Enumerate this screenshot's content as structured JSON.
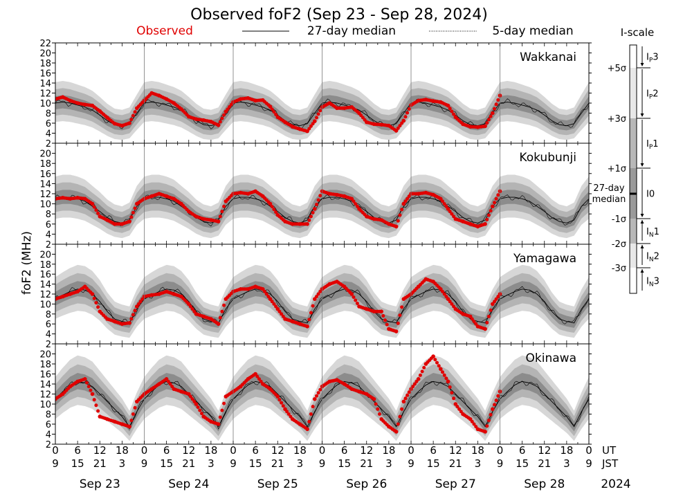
{
  "title": "Observed foF2 (Sep 23 - Sep 28, 2024)",
  "legend": {
    "observed": "Observed",
    "median27": "27-day median",
    "median5": "5-day median",
    "colors": {
      "observed": "#e00000",
      "median": "#000000",
      "band1": "#8c8c8c",
      "band2": "#b4b4b4",
      "band3": "#d7d7d7"
    }
  },
  "y_axis_label": "foF2 (MHz)",
  "x_axis": {
    "ut_label": "UT",
    "jst_label": "JST",
    "ut_ticks": [
      "0",
      "6",
      "12",
      "18",
      "0",
      "6",
      "12",
      "18",
      "0",
      "6",
      "12",
      "18",
      "0",
      "6",
      "12",
      "18",
      "0",
      "6",
      "12",
      "18",
      "0",
      "6",
      "12",
      "18",
      "0"
    ],
    "jst_ticks": [
      "9",
      "15",
      "21",
      "3",
      "9",
      "15",
      "21",
      "3",
      "9",
      "15",
      "21",
      "3",
      "9",
      "15",
      "21",
      "3",
      "9",
      "15",
      "21",
      "3",
      "9",
      "15",
      "21",
      "3",
      "9"
    ],
    "dates": [
      "Sep 23",
      "Sep 24",
      "Sep 25",
      "Sep 26",
      "Sep 27",
      "Sep 28"
    ],
    "year": "2024"
  },
  "iscale": {
    "title": "I-scale",
    "sigma_labels": [
      "+5σ",
      "+3σ",
      "+1σ",
      "27-day median",
      "-1σ",
      "-2σ",
      "-3σ"
    ],
    "class_labels": [
      {
        "base": "I",
        "sub": "P",
        "num": "3"
      },
      {
        "base": "I",
        "sub": "P",
        "num": "2"
      },
      {
        "base": "I",
        "sub": "P",
        "num": "1"
      },
      {
        "base": "I0",
        "sub": "",
        "num": ""
      },
      {
        "base": "I",
        "sub": "N",
        "num": "1"
      },
      {
        "base": "I",
        "sub": "N",
        "num": "2"
      },
      {
        "base": "I",
        "sub": "N",
        "num": "3"
      }
    ]
  },
  "chart_data": {
    "type": "scatter",
    "title": "Observed foF2 (Sep 23 - Sep 28, 2024)",
    "ylabel": "foF2 (MHz)",
    "x_unit": "hours UT since Sep 23 00:00",
    "xlim": [
      0,
      144
    ],
    "panels": [
      {
        "name": "Wakkanai",
        "ylim": [
          2,
          22
        ],
        "yticks": [
          "2",
          "4",
          "6",
          "8",
          "10",
          "12",
          "14",
          "16",
          "18",
          "20",
          "22"
        ],
        "median27": {
          "x": [
            0,
            2,
            4,
            6,
            8,
            10,
            12,
            14,
            16,
            18,
            20,
            22,
            24
          ],
          "y": [
            10.0,
            10.2,
            10.0,
            9.6,
            9.2,
            8.6,
            7.6,
            6.5,
            5.7,
            5.5,
            5.9,
            8.0,
            10.0
          ]
        },
        "observed": {
          "x": [
            0,
            2,
            4,
            6,
            8,
            10,
            12,
            14,
            16,
            18,
            20,
            22,
            24,
            26,
            28,
            30,
            32,
            34,
            36,
            38,
            40,
            42,
            44,
            46,
            48,
            50,
            52,
            54,
            56,
            58,
            60,
            62,
            64,
            66,
            68,
            70,
            72,
            74,
            76,
            78,
            80,
            82,
            84,
            86,
            88,
            90,
            92,
            94,
            96,
            98,
            100,
            102,
            104,
            106,
            108,
            110,
            112,
            114,
            116,
            118,
            120
          ],
          "y": [
            10.8,
            11.2,
            10.5,
            10.0,
            9.7,
            9.5,
            8.4,
            7.1,
            5.9,
            5.5,
            6.0,
            9.0,
            10.5,
            12.0,
            11.5,
            10.8,
            10.0,
            8.8,
            7.3,
            6.8,
            6.6,
            6.3,
            5.6,
            8.3,
            10.2,
            10.8,
            11.0,
            10.5,
            10.6,
            9.3,
            7.2,
            6.2,
            5.3,
            4.8,
            4.4,
            6.4,
            9.2,
            10.0,
            9.0,
            9.0,
            9.2,
            8.0,
            6.2,
            5.8,
            5.7,
            5.5,
            4.5,
            6.5,
            9.6,
            10.5,
            10.7,
            10.4,
            10.2,
            9.5,
            7.2,
            5.8,
            5.3,
            5.2,
            5.4,
            8.0,
            11.5
          ]
        }
      },
      {
        "name": "Kokubunji",
        "ylim": [
          2,
          22
        ],
        "yticks": [
          "2",
          "4",
          "6",
          "8",
          "10",
          "12",
          "14",
          "16",
          "18",
          "20"
        ],
        "median27": {
          "x": [
            0,
            2,
            4,
            6,
            8,
            10,
            12,
            14,
            16,
            18,
            20,
            22,
            24
          ],
          "y": [
            11.0,
            11.3,
            11.3,
            11.0,
            10.5,
            9.5,
            8.5,
            7.3,
            6.5,
            6.2,
            6.8,
            9.5,
            11.0
          ]
        },
        "observed": {
          "x": [
            0,
            2,
            4,
            6,
            8,
            10,
            12,
            14,
            16,
            18,
            20,
            22,
            24,
            26,
            28,
            30,
            32,
            34,
            36,
            38,
            40,
            42,
            44,
            46,
            48,
            50,
            52,
            54,
            56,
            58,
            60,
            62,
            64,
            66,
            68,
            70,
            72,
            74,
            76,
            78,
            80,
            82,
            84,
            86,
            88,
            90,
            92,
            94,
            96,
            98,
            100,
            102,
            104,
            106,
            108,
            110,
            112,
            114,
            116,
            118,
            120
          ],
          "y": [
            11.0,
            11.2,
            11.0,
            11.2,
            11.0,
            10.0,
            7.5,
            6.8,
            6.0,
            6.0,
            6.5,
            10.0,
            11.0,
            11.5,
            12.0,
            11.5,
            11.0,
            10.0,
            8.5,
            7.5,
            7.0,
            6.8,
            6.5,
            10.5,
            12.0,
            12.2,
            12.0,
            12.5,
            11.5,
            10.0,
            7.8,
            6.5,
            6.0,
            6.0,
            6.0,
            9.0,
            12.5,
            12.0,
            11.8,
            11.5,
            11.0,
            9.0,
            7.5,
            7.0,
            6.8,
            6.0,
            5.5,
            10.0,
            12.0,
            12.0,
            12.2,
            11.8,
            11.0,
            9.0,
            7.0,
            6.5,
            6.0,
            5.5,
            6.0,
            9.5,
            12.5
          ]
        }
      },
      {
        "name": "Yamagawa",
        "ylim": [
          2,
          22
        ],
        "yticks": [
          "2",
          "4",
          "6",
          "8",
          "10",
          "12",
          "14",
          "16",
          "18",
          "20"
        ],
        "median27": {
          "x": [
            0,
            2,
            4,
            6,
            8,
            10,
            12,
            14,
            16,
            18,
            20,
            22,
            24
          ],
          "y": [
            11.0,
            11.8,
            12.5,
            13.0,
            12.8,
            12.0,
            10.5,
            8.5,
            7.0,
            6.5,
            6.2,
            9.0,
            11.0
          ]
        },
        "observed": {
          "x": [
            0,
            2,
            4,
            6,
            8,
            10,
            12,
            14,
            16,
            18,
            20,
            22,
            24,
            26,
            28,
            30,
            32,
            34,
            36,
            38,
            40,
            42,
            44,
            46,
            48,
            50,
            52,
            54,
            56,
            58,
            60,
            62,
            64,
            66,
            68,
            70,
            72,
            74,
            76,
            78,
            80,
            82,
            84,
            86,
            88,
            90,
            92,
            94,
            96,
            98,
            100,
            102,
            104,
            106,
            108,
            110,
            112,
            114,
            116,
            118,
            120
          ],
          "y": [
            11.0,
            11.5,
            12.0,
            12.5,
            13.5,
            12.0,
            8.5,
            7.0,
            6.5,
            6.0,
            6.2,
            9.5,
            11.5,
            11.8,
            12.0,
            12.5,
            12.0,
            11.5,
            10.0,
            8.0,
            7.5,
            7.0,
            6.0,
            11.0,
            12.5,
            13.0,
            13.0,
            13.5,
            13.0,
            11.0,
            9.0,
            7.0,
            6.5,
            6.0,
            5.5,
            11.0,
            13.0,
            14.0,
            14.5,
            13.5,
            12.0,
            9.5,
            9.0,
            8.5,
            8.5,
            5.0,
            4.5,
            11.0,
            12.0,
            13.5,
            15.0,
            14.5,
            13.0,
            11.0,
            9.0,
            8.0,
            7.5,
            5.5,
            5.0,
            10.0,
            12.0
          ]
        }
      },
      {
        "name": "Okinawa",
        "ylim": [
          2,
          22
        ],
        "yticks": [
          "2",
          "4",
          "6",
          "8",
          "10",
          "12",
          "14",
          "16",
          "18",
          "20"
        ],
        "median27": {
          "x": [
            0,
            2,
            4,
            6,
            8,
            10,
            12,
            14,
            16,
            18,
            20,
            22,
            24
          ],
          "y": [
            11.0,
            12.5,
            13.8,
            14.5,
            14.2,
            13.5,
            12.0,
            10.5,
            9.0,
            7.5,
            5.5,
            8.5,
            11.0
          ]
        },
        "observed": {
          "x": [
            0,
            2,
            4,
            6,
            8,
            10,
            12,
            14,
            16,
            18,
            20,
            22,
            24,
            26,
            28,
            30,
            32,
            34,
            36,
            38,
            40,
            42,
            44,
            46,
            48,
            50,
            52,
            54,
            56,
            58,
            60,
            62,
            64,
            66,
            68,
            70,
            72,
            74,
            76,
            78,
            80,
            82,
            84,
            86,
            88,
            90,
            92,
            94,
            96,
            98,
            100,
            102,
            104,
            106,
            108,
            110,
            112,
            114,
            116,
            118,
            120
          ],
          "y": [
            11.0,
            12.0,
            13.5,
            14.5,
            15.0,
            12.0,
            7.5,
            7.0,
            6.5,
            6.0,
            5.5,
            10.5,
            12.0,
            13.0,
            14.0,
            15.0,
            13.0,
            12.5,
            12.0,
            10.0,
            7.5,
            6.5,
            6.0,
            11.5,
            12.5,
            13.5,
            15.0,
            16.0,
            14.0,
            13.0,
            11.5,
            9.0,
            7.0,
            6.0,
            5.0,
            11.0,
            13.5,
            14.5,
            14.8,
            14.0,
            13.0,
            12.5,
            12.0,
            11.0,
            7.0,
            5.5,
            4.5,
            10.5,
            13.0,
            15.0,
            18.0,
            19.5,
            17.0,
            14.5,
            10.0,
            8.0,
            7.0,
            5.0,
            4.5,
            9.0,
            12.5
          ]
        }
      }
    ]
  }
}
